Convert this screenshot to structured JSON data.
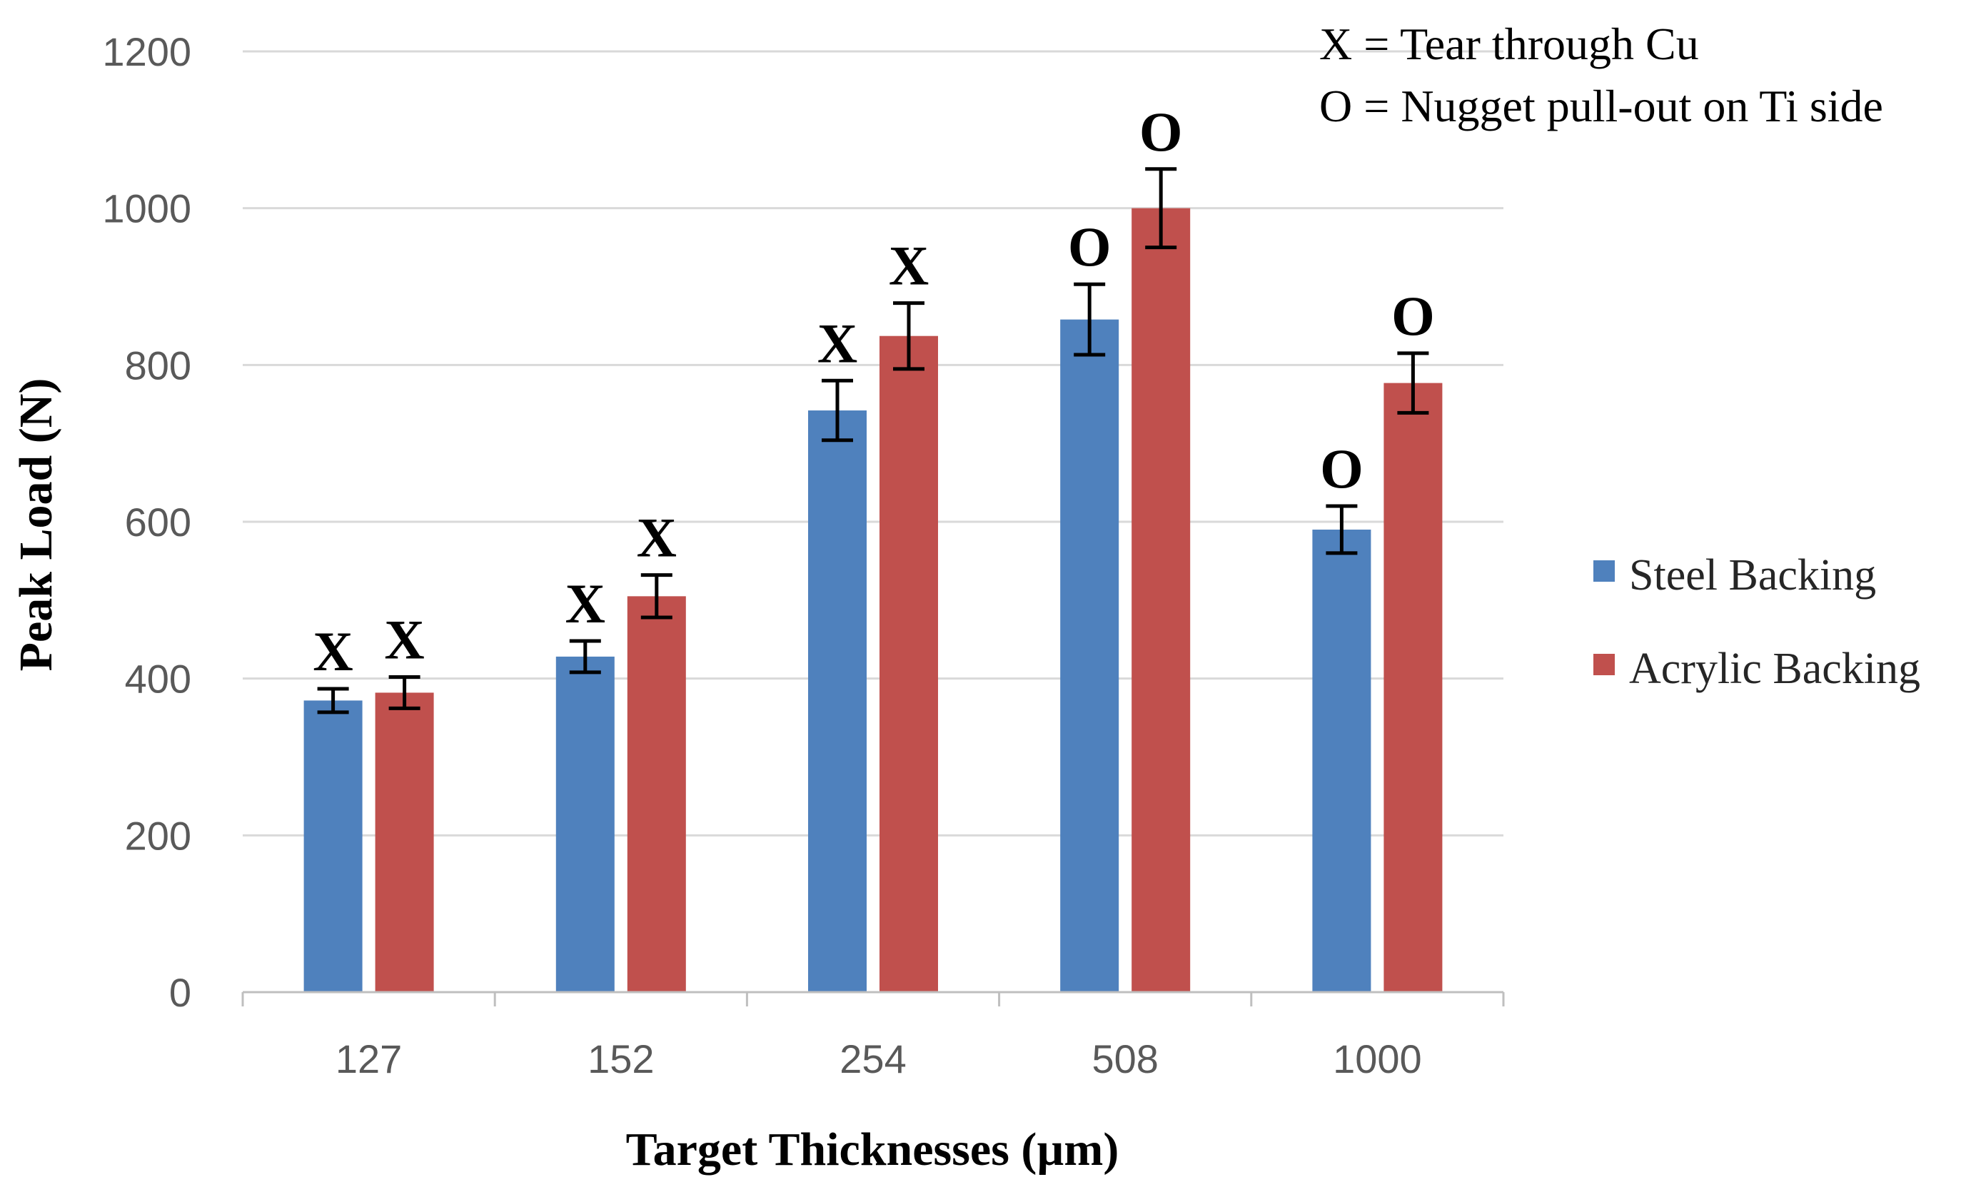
{
  "chart_data": {
    "type": "bar",
    "title": "",
    "xlabel": "Target Thicknesses (µm)",
    "ylabel": "Peak Load (N)",
    "ylim": [
      0,
      1200
    ],
    "yticks": [
      "0",
      "200",
      "400",
      "600",
      "800",
      "1000",
      "1200"
    ],
    "grid": true,
    "categories": [
      "127",
      "152",
      "254",
      "508",
      "1000"
    ],
    "series": [
      {
        "name": "Steel Backing",
        "color": "#4f81bd",
        "values": [
          372,
          428,
          742,
          858,
          590
        ],
        "errors": [
          15,
          20,
          38,
          45,
          30
        ],
        "failure_marks": [
          "X",
          "X",
          "X",
          "O",
          "O"
        ]
      },
      {
        "name": "Acrylic Backing",
        "color": "#c0504d",
        "values": [
          382,
          505,
          837,
          1000,
          777
        ],
        "errors": [
          20,
          27,
          42,
          50,
          38
        ],
        "failure_marks": [
          "X",
          "X",
          "X",
          "O",
          "O"
        ]
      }
    ],
    "legend_position": "right",
    "annotations": [
      "X = Tear through Cu",
      "O = Nugget pull-out on Ti side"
    ]
  }
}
